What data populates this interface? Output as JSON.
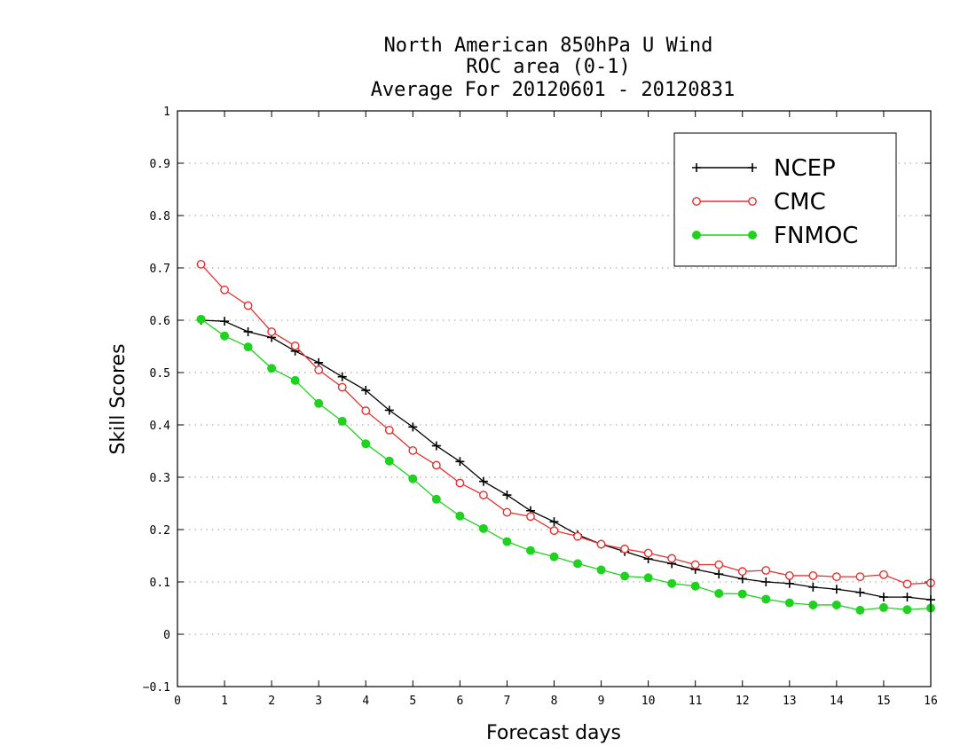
{
  "chart_data": {
    "type": "line",
    "title": [
      "North American 850hPa U Wind",
      "ROC area (0-1)",
      "Average For 20120601 - 20120831"
    ],
    "xlabel": "Forecast days",
    "ylabel": "Skill Scores",
    "xlim": [
      0,
      16
    ],
    "ylim": [
      -0.1,
      1
    ],
    "xticks": [
      "0",
      "1",
      "2",
      "3",
      "4",
      "5",
      "6",
      "7",
      "8",
      "9",
      "10",
      "11",
      "12",
      "13",
      "14",
      "15",
      "16"
    ],
    "yticks": [
      "−0.1",
      "0",
      "0.1",
      "0.2",
      "0.3",
      "0.4",
      "0.5",
      "0.6",
      "0.7",
      "0.8",
      "0.9",
      "1"
    ],
    "ytick_values": [
      -0.1,
      0,
      0.1,
      0.2,
      0.3,
      0.4,
      0.5,
      0.6,
      0.7,
      0.8,
      0.9,
      1
    ],
    "grid": "horizontal-dotted",
    "legend_position": "top-right",
    "x": [
      0.5,
      1,
      1.5,
      2,
      2.5,
      3,
      3.5,
      4,
      4.5,
      5,
      5.5,
      6,
      6.5,
      7,
      7.5,
      8,
      8.5,
      9,
      9.5,
      10,
      10.5,
      11,
      11.5,
      12,
      12.5,
      13,
      13.5,
      14,
      14.5,
      15,
      15.5,
      16
    ],
    "series": [
      {
        "name": "NCEP",
        "color": "#000000",
        "marker": "plus",
        "values": [
          0.6,
          0.598,
          0.578,
          0.567,
          0.541,
          0.519,
          0.492,
          0.466,
          0.428,
          0.396,
          0.36,
          0.33,
          0.292,
          0.266,
          0.236,
          0.215,
          0.19,
          0.172,
          0.158,
          0.144,
          0.135,
          0.124,
          0.115,
          0.106,
          0.1,
          0.097,
          0.09,
          0.086,
          0.08,
          0.071,
          0.071,
          0.066
        ]
      },
      {
        "name": "CMC",
        "color": "#e83030",
        "marker": "open-circle",
        "values": [
          0.707,
          0.658,
          0.628,
          0.578,
          0.551,
          0.505,
          0.472,
          0.427,
          0.39,
          0.351,
          0.323,
          0.289,
          0.266,
          0.233,
          0.225,
          0.198,
          0.187,
          0.172,
          0.163,
          0.155,
          0.145,
          0.133,
          0.133,
          0.12,
          0.122,
          0.112,
          0.112,
          0.11,
          0.11,
          0.114,
          0.096,
          0.098
        ]
      },
      {
        "name": "FNMOC",
        "color": "#1fd21f",
        "marker": "filled-circle",
        "values": [
          0.602,
          0.57,
          0.549,
          0.508,
          0.485,
          0.441,
          0.407,
          0.364,
          0.331,
          0.297,
          0.258,
          0.226,
          0.202,
          0.177,
          0.16,
          0.148,
          0.135,
          0.123,
          0.111,
          0.108,
          0.097,
          0.092,
          0.078,
          0.077,
          0.067,
          0.06,
          0.056,
          0.056,
          0.046,
          0.051,
          0.047,
          0.05
        ]
      }
    ]
  }
}
